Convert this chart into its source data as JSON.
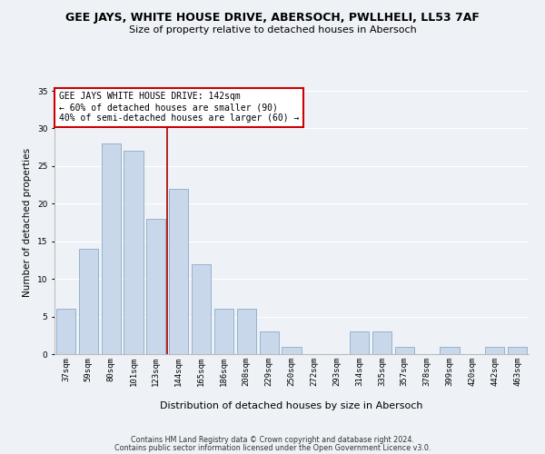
{
  "title": "GEE JAYS, WHITE HOUSE DRIVE, ABERSOCH, PWLLHELI, LL53 7AF",
  "subtitle": "Size of property relative to detached houses in Abersoch",
  "xlabel": "Distribution of detached houses by size in Abersoch",
  "ylabel": "Number of detached properties",
  "bar_labels": [
    "37sqm",
    "59sqm",
    "80sqm",
    "101sqm",
    "123sqm",
    "144sqm",
    "165sqm",
    "186sqm",
    "208sqm",
    "229sqm",
    "250sqm",
    "272sqm",
    "293sqm",
    "314sqm",
    "335sqm",
    "357sqm",
    "378sqm",
    "399sqm",
    "420sqm",
    "442sqm",
    "463sqm"
  ],
  "bar_values": [
    6,
    14,
    28,
    27,
    18,
    22,
    12,
    6,
    6,
    3,
    1,
    0,
    0,
    3,
    3,
    1,
    0,
    1,
    0,
    1,
    1
  ],
  "bar_color": "#c8d8ea",
  "bar_edge_color": "#8aaac8",
  "highlight_index": 5,
  "highlight_line_color": "#aa0000",
  "annotation_title": "GEE JAYS WHITE HOUSE DRIVE: 142sqm",
  "annotation_line1": "← 60% of detached houses are smaller (90)",
  "annotation_line2": "40% of semi-detached houses are larger (60) →",
  "annotation_box_facecolor": "#ffffff",
  "annotation_box_edgecolor": "#cc0000",
  "ylim": [
    0,
    35
  ],
  "yticks": [
    0,
    5,
    10,
    15,
    20,
    25,
    30,
    35
  ],
  "footer_line1": "Contains HM Land Registry data © Crown copyright and database right 2024.",
  "footer_line2": "Contains public sector information licensed under the Open Government Licence v3.0.",
  "bg_color": "#eef2f7",
  "grid_color": "#ffffff",
  "title_fontsize": 9,
  "subtitle_fontsize": 8,
  "ylabel_fontsize": 7.5,
  "xlabel_fontsize": 8,
  "tick_fontsize": 6.5,
  "annotation_fontsize": 7,
  "footer_fontsize": 5.8
}
